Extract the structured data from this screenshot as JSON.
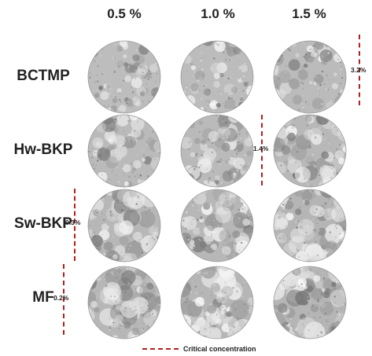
{
  "columns": [
    "0.5 %",
    "1.0 %",
    "1.5 %"
  ],
  "rows": [
    {
      "label": "BCTMP",
      "critical": "3.2%"
    },
    {
      "label": "Hw-BKP",
      "critical": "1.4%"
    },
    {
      "label": "Sw-BKP",
      "critical": "0.3%"
    },
    {
      "label": "MF",
      "critical": "0.2%"
    }
  ],
  "legend": {
    "label": "Critical concentration",
    "line_color": "#b02020"
  },
  "colors": {
    "line": "#b02020",
    "sample_base": "#b4b4b4"
  }
}
